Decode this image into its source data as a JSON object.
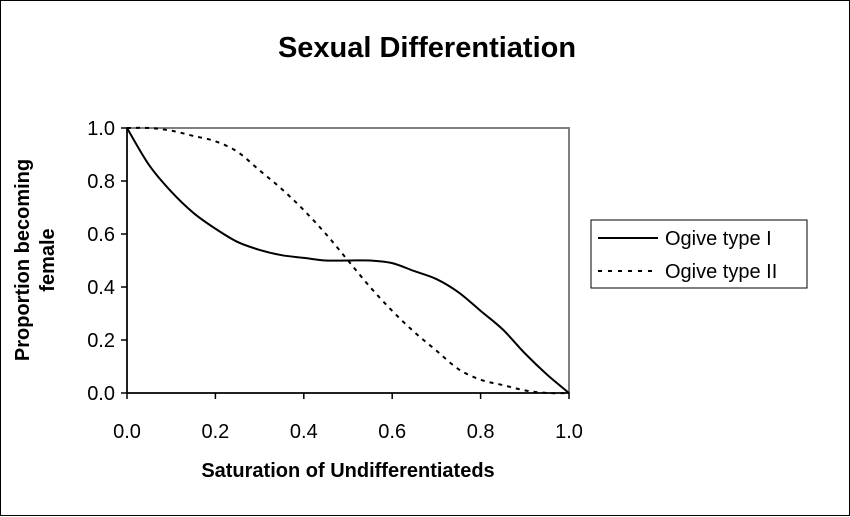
{
  "chart_data": {
    "type": "line",
    "title": "Sexual Differentiation",
    "xlabel": "Saturation of Undifferentiateds",
    "ylabel_lines": [
      "Proportion becoming",
      "female"
    ],
    "xlim": [
      0,
      1
    ],
    "ylim": [
      0,
      1
    ],
    "x_ticks": [
      "0.0",
      "0.2",
      "0.4",
      "0.6",
      "0.8",
      "1.0"
    ],
    "y_ticks": [
      "0.0",
      "0.2",
      "0.4",
      "0.6",
      "0.8",
      "1.0"
    ],
    "grid": false,
    "legend": "right",
    "x": [
      0.0,
      0.05,
      0.1,
      0.15,
      0.2,
      0.25,
      0.3,
      0.35,
      0.4,
      0.45,
      0.5,
      0.55,
      0.6,
      0.65,
      0.7,
      0.75,
      0.8,
      0.85,
      0.9,
      0.95,
      1.0
    ],
    "series": [
      {
        "name": "Ogive type I",
        "style": "solid",
        "color": "#000000",
        "values": [
          1.0,
          0.86,
          0.76,
          0.68,
          0.62,
          0.57,
          0.54,
          0.52,
          0.51,
          0.5,
          0.5,
          0.5,
          0.49,
          0.46,
          0.43,
          0.38,
          0.31,
          0.24,
          0.15,
          0.07,
          0.0
        ]
      },
      {
        "name": "Ogive type II",
        "style": "dotted",
        "color": "#000000",
        "values": [
          1.0,
          1.0,
          0.99,
          0.97,
          0.95,
          0.91,
          0.84,
          0.77,
          0.69,
          0.6,
          0.5,
          0.4,
          0.31,
          0.23,
          0.16,
          0.09,
          0.05,
          0.03,
          0.01,
          0.0,
          0.0
        ]
      }
    ]
  }
}
